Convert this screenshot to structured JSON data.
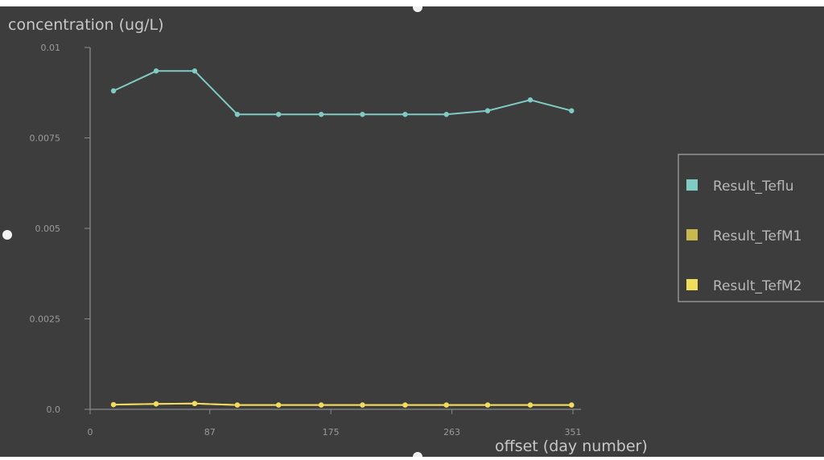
{
  "chart_data": {
    "type": "line",
    "title": "",
    "ylabel": "concentration (ug/L)",
    "xlabel": "offset (day number)",
    "xlim": [
      0,
      351
    ],
    "ylim": [
      0,
      0.01
    ],
    "x_ticks": [
      "0",
      "87",
      "175",
      "263",
      "351"
    ],
    "x_tick_values": [
      0,
      87,
      175,
      263,
      351
    ],
    "y_ticks": [
      "0.0",
      "0.0025",
      "0.005",
      "0.0075",
      "0.01"
    ],
    "y_tick_values": [
      0,
      0.0025,
      0.005,
      0.0075,
      0.01
    ],
    "grid": false,
    "legend_position": "right",
    "x": [
      17,
      48,
      76,
      107,
      137,
      168,
      198,
      229,
      259,
      289,
      320,
      350
    ],
    "series": [
      {
        "name": "Result_Teflu",
        "color": "#80cbc4",
        "values": [
          0.0088,
          0.00935,
          0.00935,
          0.00815,
          0.00815,
          0.00815,
          0.00815,
          0.00815,
          0.00815,
          0.00825,
          0.00855,
          0.00825
        ]
      },
      {
        "name": "Result_TefM1",
        "color": "#c9b84e",
        "values": [
          0.00013,
          0.00015,
          0.00016,
          0.00012,
          0.00012,
          0.00012,
          0.00012,
          0.00012,
          0.00012,
          0.00012,
          0.00012,
          0.00012
        ]
      },
      {
        "name": "Result_TefM2",
        "color": "#f2dc5d",
        "values": [
          0.00013,
          0.00015,
          0.00016,
          0.00012,
          0.00012,
          0.00012,
          0.00012,
          0.00012,
          0.00012,
          0.00012,
          0.00012,
          0.00012
        ]
      }
    ]
  },
  "colors": {
    "background": "#3d3d3d",
    "axis": "#8a8a8a",
    "tick_text": "#9a9a9a",
    "label_text": "#c8c8c8",
    "legend_border": "#a8a8a8",
    "legend_text": "#b8b8b8"
  }
}
